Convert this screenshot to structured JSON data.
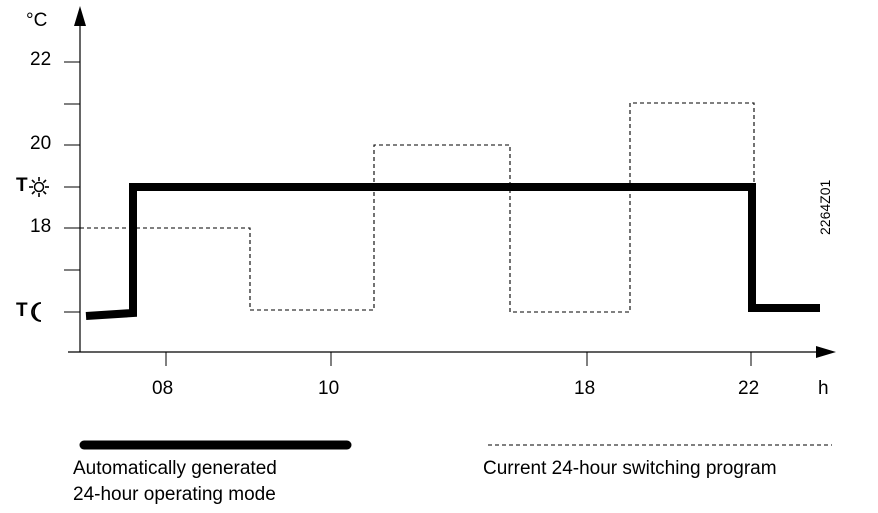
{
  "chart_data": {
    "type": "line",
    "y_unit": "°C",
    "x_unit": "h",
    "y_tick_labels": [
      "22",
      "20",
      "18"
    ],
    "y_symbol_labels": [
      {
        "letter": "T",
        "icon": "sun-icon",
        "value": 19
      },
      {
        "letter": "T",
        "icon": "moon-icon",
        "value": 16
      }
    ],
    "x_tick_labels": [
      "08",
      "10",
      "18",
      "22"
    ],
    "ylim": [
      14,
      23
    ],
    "series": [
      {
        "name": "Automatically generated 24-hour operating mode",
        "style": "thick-solid",
        "x": [
          6,
          7,
          7,
          22,
          22,
          23.5
        ],
        "y": [
          16,
          16.1,
          19,
          19,
          16.2,
          16.2
        ]
      },
      {
        "name": "Current 24-hour switching program",
        "style": "dashed",
        "x": [
          7,
          9,
          9,
          11,
          11,
          16.5,
          16.5,
          19,
          19,
          22,
          22
        ],
        "y": [
          18,
          18,
          16,
          16,
          20,
          20,
          16,
          16,
          21,
          21,
          16.2
        ]
      }
    ],
    "code_label": "2264Z01"
  },
  "legend": {
    "solid_label_line1": "Automatically generated",
    "solid_label_line2": "24-hour operating mode",
    "dashed_label": "Current 24-hour switching program"
  },
  "colors": {
    "line": "#000000",
    "background": "#ffffff"
  }
}
